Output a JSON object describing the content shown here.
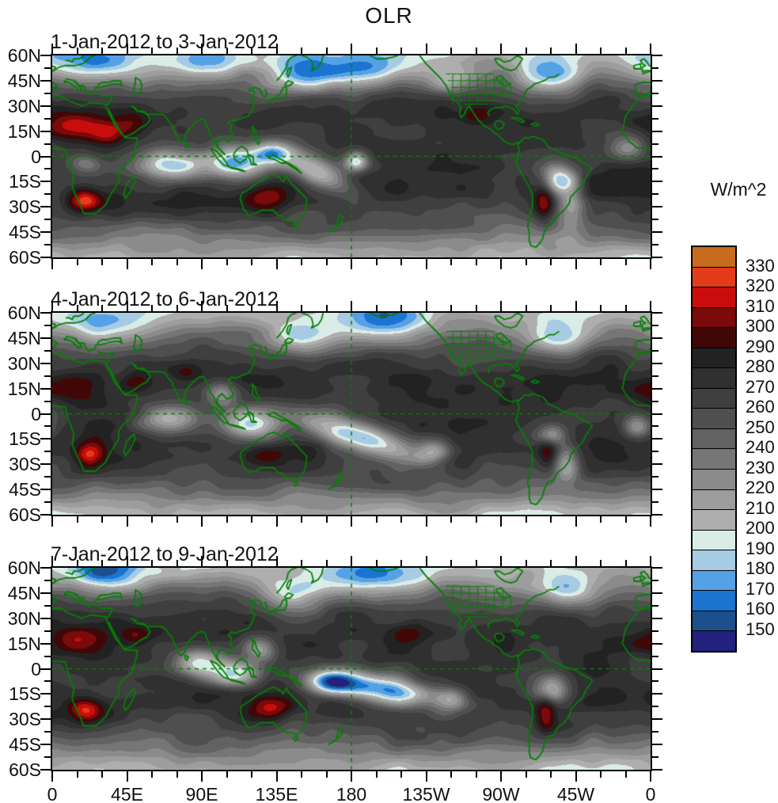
{
  "title": "OLR",
  "panels": [
    {
      "title": "1-Jan-2012 to 3-Jan-2012"
    },
    {
      "title": "4-Jan-2012 to 6-Jan-2012"
    },
    {
      "title": "7-Jan-2012 to 9-Jan-2012"
    }
  ],
  "colorbar": {
    "unit": "W/m^2",
    "levels": [
      150,
      160,
      170,
      180,
      190,
      200,
      210,
      220,
      230,
      240,
      250,
      260,
      270,
      280,
      290,
      300,
      310,
      320,
      330
    ],
    "colors": [
      "#23217d",
      "#1d4f8c",
      "#1b74d0",
      "#55a1e6",
      "#a7cbe2",
      "#daece7",
      "#aeaeae",
      "#9d9d9d",
      "#8b8b8b",
      "#767676",
      "#626262",
      "#4f4f4f",
      "#3f3f3f",
      "#303030",
      "#222222",
      "#410707",
      "#7b0a0a",
      "#c90c0c",
      "#e43c1a",
      "#c76b1e"
    ]
  },
  "axes": {
    "lon_tick_labels": [
      "0",
      "45E",
      "90E",
      "135E",
      "180",
      "135W",
      "90W",
      "45W",
      "0"
    ],
    "lat_tick_labels": [
      "60N",
      "45N",
      "30N",
      "15N",
      "0",
      "15S",
      "30S",
      "45S",
      "60S"
    ]
  },
  "map_style": {
    "coastline_color": "#067f06",
    "gridline_color": "#067f06",
    "frame_color": "#000000",
    "background": "#ffffff"
  },
  "chart_data": {
    "type": "heatmap",
    "variable": "OLR",
    "unit": "W/m^2",
    "title": "OLR",
    "panel_titles": [
      "1-Jan-2012 to 3-Jan-2012",
      "4-Jan-2012 to 6-Jan-2012",
      "7-Jan-2012 to 9-Jan-2012"
    ],
    "projection": "equirectangular",
    "x_axis": {
      "tick_labels": [
        "0",
        "45E",
        "90E",
        "135E",
        "180",
        "135W",
        "90W",
        "45W",
        "0"
      ],
      "range_deg_east": [
        0,
        360
      ],
      "major_step_deg": 45,
      "minor_step_deg": 15
    },
    "y_axis": {
      "tick_labels": [
        "60N",
        "45N",
        "30N",
        "15N",
        "0",
        "15S",
        "30S",
        "45S",
        "60S"
      ],
      "range_deg_lat": [
        -60,
        60
      ],
      "major_step_deg": 15
    },
    "contour_levels_w_m2": [
      150,
      160,
      170,
      180,
      190,
      200,
      210,
      220,
      230,
      240,
      250,
      260,
      270,
      280,
      290,
      300,
      310,
      320,
      330
    ],
    "fill_colors_low_to_high": [
      "#23217d",
      "#1d4f8c",
      "#1b74d0",
      "#55a1e6",
      "#a7cbe2",
      "#daece7",
      "#aeaeae",
      "#9d9d9d",
      "#8b8b8b",
      "#767676",
      "#626262",
      "#4f4f4f",
      "#3f3f3f",
      "#303030",
      "#222222",
      "#410707",
      "#7b0a0a",
      "#c90c0c",
      "#e43c1a",
      "#c76b1e"
    ],
    "legend_position": "right",
    "overlays_visible": [
      "green coastlines",
      "green US state borders",
      "green dashed gridlines at equator and 180"
    ]
  }
}
